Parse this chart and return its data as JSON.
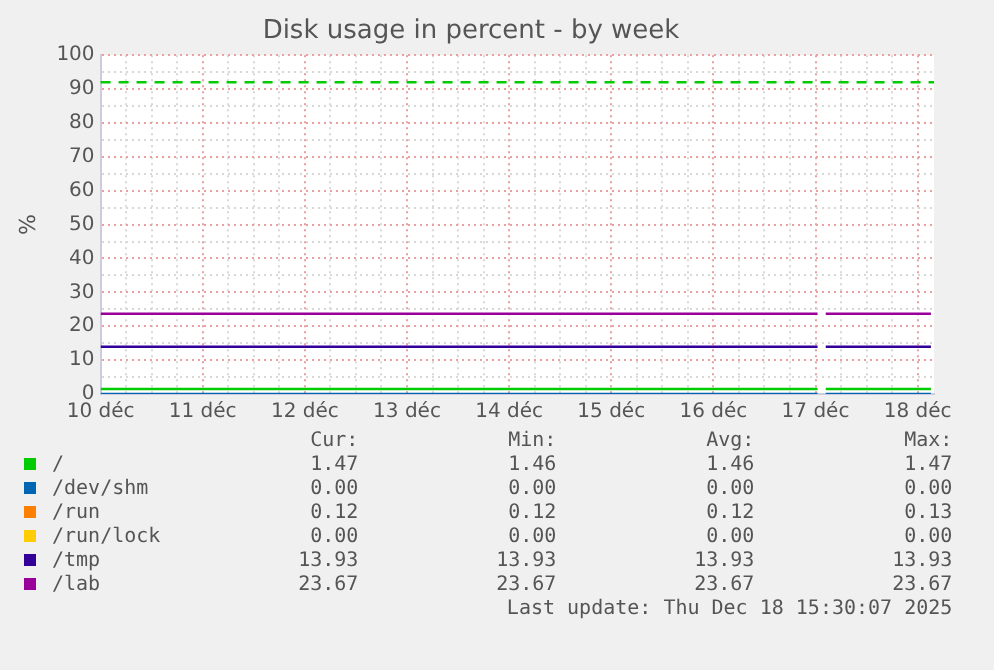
{
  "chart_data": {
    "type": "line",
    "title": "Disk usage in percent - by week",
    "ylabel": "%",
    "xlim": [
      10,
      18.16
    ],
    "ylim": [
      0,
      100
    ],
    "xticks": [
      {
        "value": 10,
        "label": "10 déc"
      },
      {
        "value": 10.25,
        "label": null
      },
      {
        "value": 10.5,
        "label": null
      },
      {
        "value": 10.75,
        "label": null
      },
      {
        "value": 11,
        "label": "11 déc"
      },
      {
        "value": 11.25,
        "label": null
      },
      {
        "value": 11.5,
        "label": null
      },
      {
        "value": 11.75,
        "label": null
      },
      {
        "value": 12,
        "label": "12 déc"
      },
      {
        "value": 12.25,
        "label": null
      },
      {
        "value": 12.5,
        "label": null
      },
      {
        "value": 12.75,
        "label": null
      },
      {
        "value": 13,
        "label": "13 déc"
      },
      {
        "value": 13.25,
        "label": null
      },
      {
        "value": 13.5,
        "label": null
      },
      {
        "value": 13.75,
        "label": null
      },
      {
        "value": 14,
        "label": "14 déc"
      },
      {
        "value": 14.25,
        "label": null
      },
      {
        "value": 14.5,
        "label": null
      },
      {
        "value": 14.75,
        "label": null
      },
      {
        "value": 15,
        "label": "15 déc"
      },
      {
        "value": 15.25,
        "label": null
      },
      {
        "value": 15.5,
        "label": null
      },
      {
        "value": 15.75,
        "label": null
      },
      {
        "value": 16,
        "label": "16 déc"
      },
      {
        "value": 16.25,
        "label": null
      },
      {
        "value": 16.5,
        "label": null
      },
      {
        "value": 16.75,
        "label": null
      },
      {
        "value": 17,
        "label": "17 déc"
      },
      {
        "value": 17.25,
        "label": null
      },
      {
        "value": 17.5,
        "label": null
      },
      {
        "value": 17.75,
        "label": null
      },
      {
        "value": 18,
        "label": "18 déc"
      }
    ],
    "yticks": [
      0,
      {
        "value": 5,
        "label": null
      },
      10,
      {
        "value": 15,
        "label": null
      },
      20,
      {
        "value": 25,
        "label": null
      },
      30,
      {
        "value": 35,
        "label": null
      },
      40,
      {
        "value": 45,
        "label": null
      },
      50,
      {
        "value": 55,
        "label": null
      },
      60,
      {
        "value": 65,
        "label": null
      },
      70,
      {
        "value": 75,
        "label": null
      },
      80,
      {
        "value": 85,
        "label": null
      },
      90,
      {
        "value": 95,
        "label": null
      },
      100
    ],
    "grid": true,
    "legend": "bottom",
    "marker": "none",
    "line_style": "solid",
    "series": [
      {
        "name": "/",
        "color": "#00cc00",
        "x": [
          10,
          17.02,
          17.06,
          17.1,
          18.13
        ],
        "values": [
          1.47,
          1.47,
          null,
          1.47,
          1.47
        ]
      },
      {
        "name": "/dev/shm",
        "color": "#0066b3",
        "x": [
          10,
          17.02,
          17.06,
          17.1,
          18.13
        ],
        "values": [
          0,
          0,
          null,
          0,
          0
        ]
      },
      {
        "name": "/run",
        "color": "#ff8000"
      },
      {
        "name": "/run/lock",
        "color": "#ffcc00"
      },
      {
        "name": "/tmp",
        "color": "#330099",
        "x": [
          10,
          17.02,
          17.06,
          17.1,
          18.13
        ],
        "values": [
          13.93,
          13.93,
          null,
          13.93,
          13.93
        ]
      },
      {
        "name": "/lab",
        "color": "#990099",
        "x": [
          10,
          17.02,
          17.06,
          17.1,
          18.13
        ],
        "values": [
          23.67,
          23.67,
          null,
          23.67,
          23.67
        ]
      }
    ],
    "ref_lines": [
      {
        "axis": "y",
        "value": 92,
        "color": "#00cc00",
        "line_style": "dashed"
      }
    ],
    "annotations": [
      "Cur:",
      "Min:",
      "Avg:",
      "Max:",
      "1.47",
      "1.46",
      "1.46",
      "1.47",
      "0.00",
      "0.00",
      "0.00",
      "0.00",
      "0.12",
      "0.12",
      "0.12",
      "0.13",
      "0.00",
      "0.00",
      "0.00",
      "0.00",
      "13.93",
      "13.93",
      "13.93",
      "13.93",
      "23.67",
      "23.67",
      "23.67",
      "23.67",
      "Last update: Thu Dec 18 15:30:07 2025"
    ]
  }
}
